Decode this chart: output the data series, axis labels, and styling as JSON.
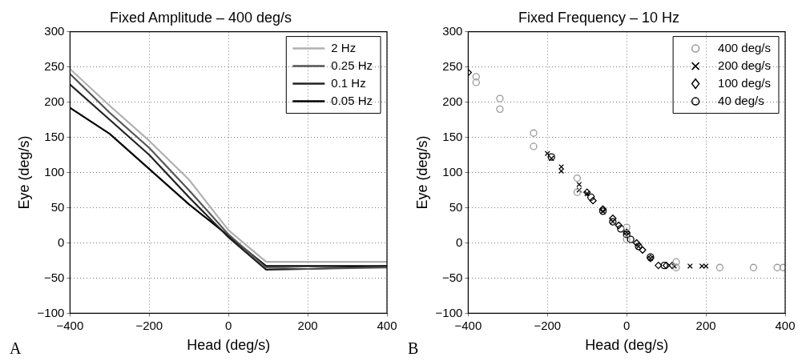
{
  "chart_data": [
    {
      "type": "line",
      "title": "Fixed Amplitude – 400 deg/s",
      "xlabel": "Head (deg/s)",
      "ylabel": "Eye (deg/s)",
      "annotations": [
        "A"
      ],
      "xlim": [
        -400,
        400
      ],
      "xticks": [
        -400,
        -200,
        0,
        200,
        400
      ],
      "ylim": [
        -100,
        300
      ],
      "yticks": [
        -100,
        -50,
        0,
        50,
        100,
        150,
        200,
        250,
        300
      ],
      "grid": true,
      "legend": "top right",
      "line_style": "solid",
      "x": [
        -400,
        -300,
        -200,
        -100,
        0,
        95,
        200,
        400
      ],
      "series": [
        {
          "name": "2 Hz",
          "color": "#b0b0b0",
          "values": [
            247,
            195,
            145,
            90,
            18,
            -27,
            -27,
            -27
          ]
        },
        {
          "name": "0.25 Hz",
          "color": "#555555",
          "values": [
            240,
            185,
            135,
            75,
            12,
            -35,
            -37,
            -35
          ]
        },
        {
          "name": "0.1 Hz",
          "color": "#222222",
          "values": [
            225,
            175,
            125,
            65,
            8,
            -38,
            -37,
            -33
          ]
        },
        {
          "name": "0.05 Hz",
          "color": "#000000",
          "values": [
            192,
            155,
            105,
            55,
            10,
            -33,
            -33,
            -33
          ]
        }
      ]
    },
    {
      "type": "scatter",
      "title": "Fixed Frequency – 10 Hz",
      "xlabel": "Head (deg/s)",
      "ylabel": "Eye (deg/s)",
      "annotations": [
        "B"
      ],
      "xlim": [
        -400,
        400
      ],
      "xticks": [
        -400,
        -200,
        0,
        200,
        400
      ],
      "ylim": [
        -100,
        300
      ],
      "yticks": [
        -100,
        -50,
        0,
        50,
        100,
        150,
        200,
        250,
        300
      ],
      "grid": true,
      "legend": "top right",
      "series": [
        {
          "name": "400 deg/s",
          "color": "#999999",
          "marker": "circle",
          "x": [
            -380,
            -380,
            -320,
            -320,
            -235,
            -235,
            -125,
            -125,
            0,
            0,
            125,
            125,
            235,
            320,
            380,
            395
          ],
          "values": [
            236,
            228,
            205,
            190,
            156,
            137,
            92,
            72,
            22,
            5,
            -27,
            -35,
            -35,
            -35,
            -35,
            -35
          ]
        },
        {
          "name": "200 deg/s",
          "color": "#000000",
          "marker": "cross",
          "x": [
            -200,
            -190,
            -165,
            -165,
            -120,
            -120,
            -100,
            -60,
            -35,
            0,
            30,
            60,
            120,
            160,
            190,
            200
          ],
          "values": [
            127,
            120,
            108,
            102,
            83,
            75,
            70,
            45,
            30,
            15,
            -5,
            -22,
            -33,
            -33,
            -33,
            -33
          ]
        },
        {
          "name": "100 deg/s",
          "color": "#000000",
          "marker": "diamond",
          "x": [
            -400,
            -100,
            -85,
            -60,
            -35,
            -20,
            0,
            25,
            40,
            60,
            80,
            100,
            115
          ],
          "values": [
            242,
            72,
            60,
            48,
            35,
            25,
            15,
            0,
            -10,
            -22,
            -32,
            -32,
            -32
          ]
        },
        {
          "name": "40 deg/s",
          "color": "#000000",
          "marker": "circle",
          "x": [
            -190,
            -90,
            -60,
            -35,
            -15,
            0,
            10,
            30,
            60,
            95
          ],
          "values": [
            122,
            65,
            45,
            30,
            20,
            12,
            5,
            -5,
            -20,
            -32
          ]
        }
      ]
    }
  ]
}
